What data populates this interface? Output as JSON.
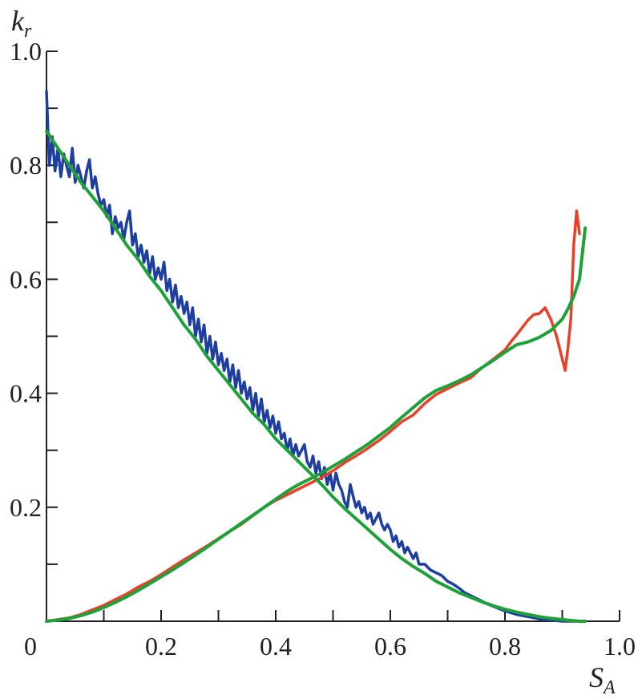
{
  "chart_data": {
    "type": "line",
    "xlabel": "S",
    "xlabel_sub": "A",
    "ylabel": "k",
    "ylabel_sub": "r",
    "xlim": [
      0,
      1.0
    ],
    "ylim": [
      0,
      1.0
    ],
    "x_tick_labels": [
      "0",
      "0.2",
      "0.4",
      "0.6",
      "0.8",
      "1.0"
    ],
    "x_tick_values": [
      0,
      0.2,
      0.4,
      0.6,
      0.8,
      1.0
    ],
    "y_tick_labels": [
      "0.2",
      "0.4",
      "0.6",
      "0.8",
      "1.0"
    ],
    "y_tick_values": [
      0.2,
      0.4,
      0.6,
      0.8,
      1.0
    ],
    "minor_tick_step": 0.1,
    "grid": false,
    "series": [
      {
        "color": "#1f3fa0",
        "x": [
          0.0,
          0.005,
          0.01,
          0.015,
          0.02,
          0.025,
          0.03,
          0.035,
          0.04,
          0.045,
          0.05,
          0.055,
          0.06,
          0.065,
          0.07,
          0.075,
          0.08,
          0.085,
          0.09,
          0.095,
          0.1,
          0.105,
          0.11,
          0.115,
          0.12,
          0.125,
          0.13,
          0.135,
          0.14,
          0.145,
          0.15,
          0.155,
          0.16,
          0.165,
          0.17,
          0.175,
          0.18,
          0.185,
          0.19,
          0.195,
          0.2,
          0.205,
          0.21,
          0.215,
          0.22,
          0.225,
          0.23,
          0.235,
          0.24,
          0.245,
          0.25,
          0.255,
          0.26,
          0.265,
          0.27,
          0.275,
          0.28,
          0.285,
          0.29,
          0.295,
          0.3,
          0.305,
          0.31,
          0.315,
          0.32,
          0.325,
          0.33,
          0.335,
          0.34,
          0.345,
          0.35,
          0.355,
          0.36,
          0.365,
          0.37,
          0.375,
          0.38,
          0.385,
          0.39,
          0.395,
          0.4,
          0.405,
          0.41,
          0.415,
          0.42,
          0.425,
          0.43,
          0.435,
          0.44,
          0.445,
          0.45,
          0.455,
          0.46,
          0.465,
          0.47,
          0.475,
          0.48,
          0.485,
          0.49,
          0.495,
          0.5,
          0.505,
          0.51,
          0.515,
          0.52,
          0.525,
          0.53,
          0.535,
          0.54,
          0.545,
          0.55,
          0.555,
          0.56,
          0.565,
          0.57,
          0.575,
          0.58,
          0.585,
          0.59,
          0.595,
          0.6,
          0.605,
          0.61,
          0.615,
          0.62,
          0.625,
          0.63,
          0.635,
          0.64,
          0.645,
          0.65,
          0.66,
          0.67,
          0.68,
          0.69,
          0.7,
          0.71,
          0.72,
          0.73,
          0.74,
          0.75,
          0.76,
          0.77,
          0.78,
          0.79,
          0.8,
          0.81,
          0.82,
          0.83,
          0.84,
          0.85,
          0.86,
          0.87,
          0.88,
          0.89,
          0.9,
          0.91,
          0.92,
          0.93
        ],
        "y": [
          0.93,
          0.8,
          0.85,
          0.79,
          0.83,
          0.78,
          0.82,
          0.8,
          0.78,
          0.83,
          0.77,
          0.8,
          0.78,
          0.76,
          0.79,
          0.81,
          0.76,
          0.78,
          0.75,
          0.73,
          0.74,
          0.71,
          0.73,
          0.68,
          0.71,
          0.69,
          0.7,
          0.67,
          0.7,
          0.72,
          0.66,
          0.68,
          0.64,
          0.66,
          0.63,
          0.65,
          0.61,
          0.64,
          0.6,
          0.62,
          0.6,
          0.63,
          0.58,
          0.6,
          0.56,
          0.59,
          0.55,
          0.57,
          0.54,
          0.56,
          0.52,
          0.55,
          0.5,
          0.53,
          0.49,
          0.52,
          0.47,
          0.5,
          0.46,
          0.49,
          0.45,
          0.47,
          0.44,
          0.46,
          0.42,
          0.45,
          0.41,
          0.44,
          0.4,
          0.42,
          0.39,
          0.41,
          0.37,
          0.4,
          0.36,
          0.39,
          0.35,
          0.37,
          0.34,
          0.36,
          0.33,
          0.35,
          0.32,
          0.33,
          0.3,
          0.32,
          0.29,
          0.31,
          0.29,
          0.3,
          0.31,
          0.28,
          0.27,
          0.29,
          0.26,
          0.28,
          0.25,
          0.27,
          0.24,
          0.26,
          0.23,
          0.26,
          0.24,
          0.23,
          0.21,
          0.2,
          0.24,
          0.22,
          0.2,
          0.21,
          0.19,
          0.2,
          0.18,
          0.19,
          0.17,
          0.18,
          0.19,
          0.17,
          0.16,
          0.17,
          0.16,
          0.14,
          0.15,
          0.13,
          0.14,
          0.12,
          0.13,
          0.12,
          0.11,
          0.12,
          0.1,
          0.1,
          0.09,
          0.085,
          0.08,
          0.07,
          0.065,
          0.058,
          0.05,
          0.045,
          0.04,
          0.035,
          0.03,
          0.026,
          0.022,
          0.018,
          0.015,
          0.012,
          0.01,
          0.008,
          0.006,
          0.004,
          0.003,
          0.002,
          0.001,
          0.0,
          0.0,
          0.0,
          0.0
        ]
      },
      {
        "color": "#e8402a",
        "x": [
          0.0,
          0.02,
          0.04,
          0.06,
          0.08,
          0.1,
          0.12,
          0.14,
          0.16,
          0.18,
          0.2,
          0.22,
          0.24,
          0.26,
          0.28,
          0.3,
          0.32,
          0.34,
          0.36,
          0.38,
          0.4,
          0.42,
          0.44,
          0.46,
          0.48,
          0.5,
          0.52,
          0.54,
          0.56,
          0.58,
          0.6,
          0.62,
          0.64,
          0.66,
          0.68,
          0.7,
          0.72,
          0.74,
          0.76,
          0.78,
          0.8,
          0.81,
          0.82,
          0.83,
          0.84,
          0.85,
          0.86,
          0.87,
          0.88,
          0.89,
          0.9,
          0.905,
          0.91,
          0.915,
          0.92,
          0.925,
          0.93
        ],
        "y": [
          0.0,
          0.003,
          0.006,
          0.012,
          0.02,
          0.028,
          0.038,
          0.048,
          0.06,
          0.07,
          0.082,
          0.095,
          0.108,
          0.12,
          0.132,
          0.145,
          0.158,
          0.17,
          0.185,
          0.2,
          0.212,
          0.222,
          0.232,
          0.242,
          0.252,
          0.264,
          0.278,
          0.29,
          0.303,
          0.317,
          0.333,
          0.35,
          0.362,
          0.382,
          0.398,
          0.408,
          0.418,
          0.427,
          0.445,
          0.46,
          0.476,
          0.49,
          0.502,
          0.515,
          0.528,
          0.538,
          0.54,
          0.55,
          0.53,
          0.5,
          0.46,
          0.44,
          0.48,
          0.53,
          0.66,
          0.72,
          0.68
        ]
      },
      {
        "color": "#1fa13a",
        "x": [
          0.0,
          0.02,
          0.04,
          0.06,
          0.08,
          0.1,
          0.12,
          0.14,
          0.16,
          0.18,
          0.2,
          0.22,
          0.24,
          0.26,
          0.28,
          0.3,
          0.32,
          0.34,
          0.36,
          0.38,
          0.4,
          0.42,
          0.44,
          0.46,
          0.48,
          0.5,
          0.52,
          0.54,
          0.56,
          0.58,
          0.6,
          0.62,
          0.64,
          0.66,
          0.68,
          0.7,
          0.72,
          0.74,
          0.76,
          0.78,
          0.8,
          0.82,
          0.84,
          0.86,
          0.88,
          0.9,
          0.91,
          0.92,
          0.93,
          0.94
        ],
        "y": [
          0.86,
          0.83,
          0.8,
          0.77,
          0.745,
          0.72,
          0.69,
          0.66,
          0.635,
          0.605,
          0.58,
          0.55,
          0.52,
          0.495,
          0.465,
          0.44,
          0.415,
          0.39,
          0.365,
          0.345,
          0.32,
          0.3,
          0.28,
          0.26,
          0.24,
          0.218,
          0.198,
          0.18,
          0.162,
          0.144,
          0.126,
          0.11,
          0.096,
          0.084,
          0.07,
          0.06,
          0.05,
          0.042,
          0.034,
          0.027,
          0.021,
          0.016,
          0.012,
          0.008,
          0.005,
          0.003,
          0.002,
          0.001,
          0.0,
          0.0
        ]
      },
      {
        "color": "#1fa13a",
        "x": [
          0.0,
          0.02,
          0.04,
          0.06,
          0.08,
          0.1,
          0.12,
          0.14,
          0.16,
          0.18,
          0.2,
          0.22,
          0.24,
          0.26,
          0.28,
          0.3,
          0.32,
          0.34,
          0.36,
          0.38,
          0.4,
          0.42,
          0.44,
          0.46,
          0.48,
          0.5,
          0.52,
          0.54,
          0.56,
          0.58,
          0.6,
          0.62,
          0.64,
          0.66,
          0.68,
          0.7,
          0.72,
          0.74,
          0.76,
          0.78,
          0.8,
          0.82,
          0.84,
          0.86,
          0.88,
          0.9,
          0.91,
          0.92,
          0.93,
          0.94
        ],
        "y": [
          0.0,
          0.002,
          0.005,
          0.01,
          0.016,
          0.024,
          0.033,
          0.043,
          0.054,
          0.066,
          0.078,
          0.09,
          0.103,
          0.116,
          0.13,
          0.144,
          0.158,
          0.172,
          0.186,
          0.2,
          0.214,
          0.228,
          0.24,
          0.25,
          0.26,
          0.272,
          0.284,
          0.297,
          0.31,
          0.325,
          0.34,
          0.358,
          0.375,
          0.392,
          0.405,
          0.413,
          0.422,
          0.432,
          0.445,
          0.458,
          0.472,
          0.485,
          0.49,
          0.498,
          0.51,
          0.53,
          0.548,
          0.57,
          0.6,
          0.69
        ]
      }
    ]
  }
}
